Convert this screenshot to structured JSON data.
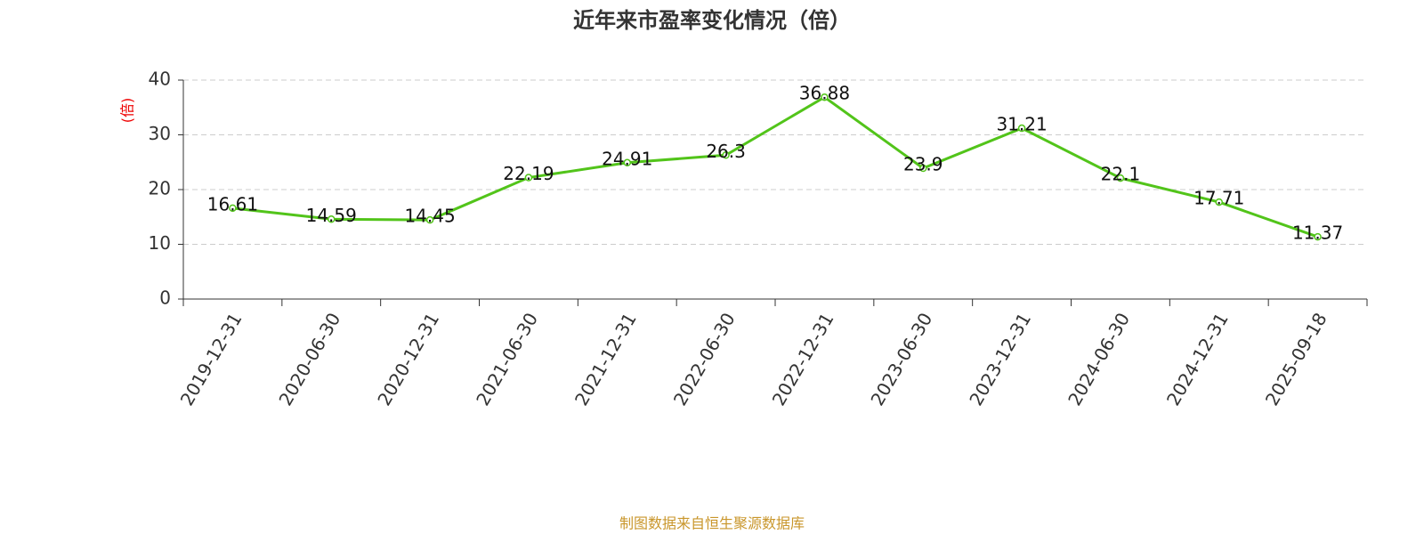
{
  "chart_data": {
    "type": "line",
    "title": "近年来市盈率变化情况（倍）",
    "y_label": "(倍)",
    "source": "制图数据来自恒生聚源数据库",
    "categories": [
      "2019-12-31",
      "2020-06-30",
      "2020-12-31",
      "2021-06-30",
      "2021-12-31",
      "2022-06-30",
      "2022-12-31",
      "2023-06-30",
      "2023-12-31",
      "2024-06-30",
      "2024-12-31",
      "2025-09-18"
    ],
    "values": [
      16.61,
      14.59,
      14.45,
      22.19,
      24.91,
      26.3,
      36.88,
      23.9,
      31.21,
      22.1,
      17.71,
      11.37
    ],
    "color": "#52c41a",
    "ylim": [
      0,
      40
    ],
    "yticks": [
      0,
      10,
      20,
      30,
      40
    ],
    "grid": true
  }
}
